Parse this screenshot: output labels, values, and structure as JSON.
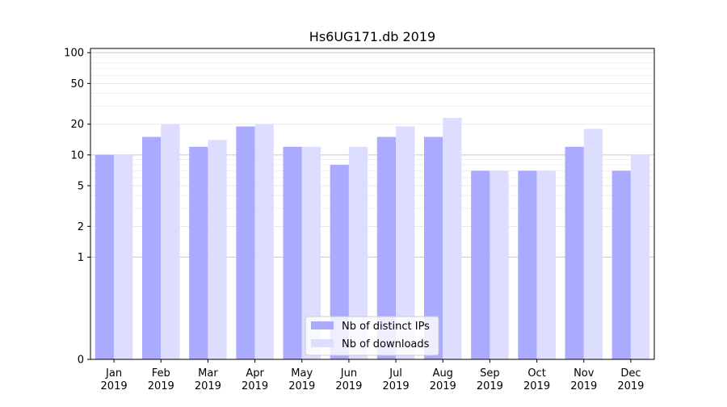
{
  "chart_data": {
    "type": "bar",
    "title": "Hs6UG171.db 2019",
    "xlabel": "",
    "ylabel": "",
    "yscale": "symlog",
    "ylim": [
      0,
      110
    ],
    "yticks": [
      0,
      1,
      2,
      5,
      10,
      20,
      50,
      100
    ],
    "ytick_labels": [
      "0",
      "1",
      "2",
      "5",
      "10",
      "20",
      "50",
      "100"
    ],
    "categories": [
      [
        "Jan",
        "2019"
      ],
      [
        "Feb",
        "2019"
      ],
      [
        "Mar",
        "2019"
      ],
      [
        "Apr",
        "2019"
      ],
      [
        "May",
        "2019"
      ],
      [
        "Jun",
        "2019"
      ],
      [
        "Jul",
        "2019"
      ],
      [
        "Aug",
        "2019"
      ],
      [
        "Sep",
        "2019"
      ],
      [
        "Oct",
        "2019"
      ],
      [
        "Nov",
        "2019"
      ],
      [
        "Dec",
        "2019"
      ]
    ],
    "series": [
      {
        "name": "Nb of distinct IPs",
        "color": "#aaaaff",
        "values": [
          10,
          15,
          12,
          19,
          12,
          8,
          15,
          15,
          7,
          7,
          12,
          7
        ]
      },
      {
        "name": "Nb of downloads",
        "color": "#ddddff",
        "values": [
          10,
          20,
          14,
          20,
          12,
          12,
          19,
          23,
          7,
          7,
          18,
          10
        ]
      }
    ],
    "grid": true,
    "legend_position": "bottom-center"
  }
}
